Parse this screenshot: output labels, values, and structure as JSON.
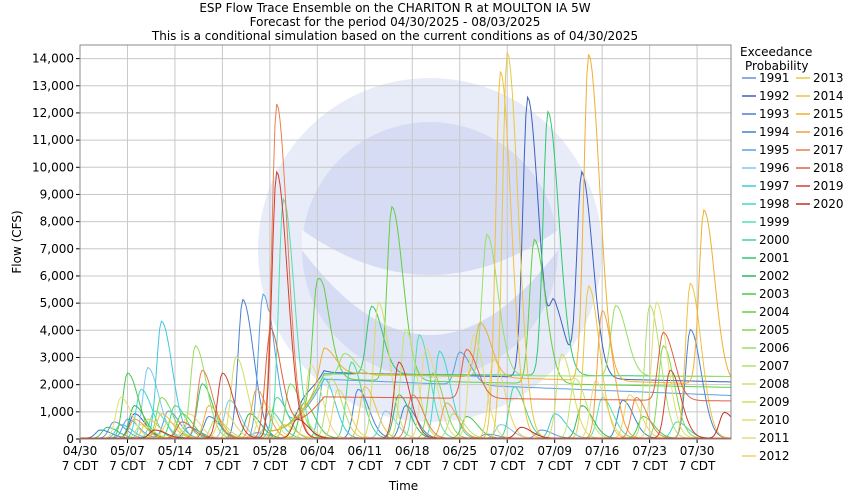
{
  "chart_data": {
    "type": "line",
    "title": "ESP Flow Trace Ensemble on the CHARITON R at MOULTON IA 5W",
    "subtitle_1": "Forecast for the period 04/30/2025 - 08/03/2025",
    "subtitle_2": "This is a conditional simulation based on the current conditions as of 04/30/2025",
    "xlabel": "Time",
    "ylabel": "Flow (CFS)",
    "ylim": [
      0,
      14500
    ],
    "xlim_days": [
      0,
      96
    ],
    "grid": true,
    "y_ticks": [
      "0",
      "1,000",
      "2,000",
      "3,000",
      "4,000",
      "5,000",
      "6,000",
      "7,000",
      "8,000",
      "9,000",
      "10,000",
      "11,000",
      "12,000",
      "13,000",
      "14,000"
    ],
    "x_ticks": [
      {
        "l1": "04/30",
        "l2": "7 CDT"
      },
      {
        "l1": "05/07",
        "l2": "7 CDT"
      },
      {
        "l1": "05/14",
        "l2": "7 CDT"
      },
      {
        "l1": "05/21",
        "l2": "7 CDT"
      },
      {
        "l1": "05/28",
        "l2": "7 CDT"
      },
      {
        "l1": "06/04",
        "l2": "7 CDT"
      },
      {
        "l1": "06/11",
        "l2": "7 CDT"
      },
      {
        "l1": "06/18",
        "l2": "7 CDT"
      },
      {
        "l1": "06/25",
        "l2": "7 CDT"
      },
      {
        "l1": "07/02",
        "l2": "7 CDT"
      },
      {
        "l1": "07/09",
        "l2": "7 CDT"
      },
      {
        "l1": "07/16",
        "l2": "7 CDT"
      },
      {
        "l1": "07/23",
        "l2": "7 CDT"
      },
      {
        "l1": "07/30",
        "l2": "7 CDT"
      }
    ],
    "legend_title_1": "Exceedance",
    "legend_title_2": "Probability",
    "legend_position": "right",
    "series": [
      {
        "name": "1991",
        "color": "#6a8fd8",
        "peaks": [
          [
            5,
            600
          ],
          [
            26,
            200
          ],
          [
            60,
            150
          ],
          [
            68,
            300
          ]
        ]
      },
      {
        "name": "1992",
        "color": "#3f5fc0",
        "peaks": [
          [
            8,
            900
          ],
          [
            33,
            400
          ],
          [
            66,
            10300
          ],
          [
            70,
            2400
          ],
          [
            74,
            7500
          ]
        ]
      },
      {
        "name": "1993",
        "color": "#4a7fd0",
        "peaks": [
          [
            16,
            400
          ],
          [
            24,
            5100
          ],
          [
            41,
            1800
          ],
          [
            90,
            4000
          ]
        ]
      },
      {
        "name": "1994",
        "color": "#3b82c8",
        "peaks": [
          [
            3,
            300
          ],
          [
            19,
            800
          ],
          [
            48,
            1200
          ],
          [
            80,
            1400
          ]
        ]
      },
      {
        "name": "1995",
        "color": "#5aa0e0",
        "peaks": [
          [
            7,
            700
          ],
          [
            13,
            1000
          ],
          [
            27,
            5300
          ],
          [
            56,
            1200
          ]
        ]
      },
      {
        "name": "1996",
        "color": "#7fc6ef",
        "peaks": [
          [
            10,
            2600
          ],
          [
            22,
            1400
          ],
          [
            45,
            1000
          ],
          [
            62,
            500
          ]
        ]
      },
      {
        "name": "1997",
        "color": "#40c8e0",
        "peaks": [
          [
            6,
            500
          ],
          [
            12,
            4300
          ],
          [
            36,
            2200
          ],
          [
            70,
            900
          ]
        ]
      },
      {
        "name": "1998",
        "color": "#3cd8c8",
        "peaks": [
          [
            9,
            1800
          ],
          [
            28,
            1000
          ],
          [
            53,
            3200
          ],
          [
            88,
            600
          ]
        ]
      },
      {
        "name": "1999",
        "color": "#50e0b0",
        "peaks": [
          [
            11,
            1000
          ],
          [
            30,
            8800
          ],
          [
            50,
            3800
          ],
          [
            77,
            1500
          ]
        ]
      },
      {
        "name": "2000",
        "color": "#40d890",
        "peaks": [
          [
            14,
            1200
          ],
          [
            29,
            1500
          ],
          [
            40,
            2800
          ],
          [
            64,
            1900
          ]
        ]
      },
      {
        "name": "2001",
        "color": "#30c870",
        "peaks": [
          [
            4,
            400
          ],
          [
            18,
            2000
          ],
          [
            43,
            2500
          ],
          [
            69,
            9700
          ]
        ]
      },
      {
        "name": "2002",
        "color": "#2ab860",
        "peaks": [
          [
            8,
            1200
          ],
          [
            25,
            900
          ],
          [
            47,
            1600
          ],
          [
            74,
            1200
          ]
        ]
      },
      {
        "name": "2003",
        "color": "#48c848",
        "peaks": [
          [
            7,
            2400
          ],
          [
            33,
            1300
          ],
          [
            57,
            800
          ],
          [
            83,
            800
          ]
        ]
      },
      {
        "name": "2004",
        "color": "#60d040",
        "peaks": [
          [
            15,
            900
          ],
          [
            35,
            4100
          ],
          [
            46,
            6400
          ],
          [
            67,
            5300
          ]
        ]
      },
      {
        "name": "2005",
        "color": "#80d850",
        "peaks": [
          [
            12,
            1500
          ],
          [
            31,
            2000
          ],
          [
            52,
            2400
          ],
          [
            86,
            3400
          ]
        ]
      },
      {
        "name": "2006",
        "color": "#98e060",
        "peaks": [
          [
            17,
            3400
          ],
          [
            39,
            800
          ],
          [
            60,
            5200
          ],
          [
            79,
            2600
          ]
        ]
      },
      {
        "name": "2007",
        "color": "#b0e070",
        "peaks": [
          [
            20,
            700
          ],
          [
            37,
            2200
          ],
          [
            55,
            900
          ],
          [
            84,
            4900
          ]
        ]
      },
      {
        "name": "2008",
        "color": "#c0e868",
        "peaks": [
          [
            9,
            500
          ],
          [
            32,
            1000
          ],
          [
            48,
            4000
          ],
          [
            73,
            2200
          ]
        ]
      },
      {
        "name": "2009",
        "color": "#d0e060",
        "peaks": [
          [
            13,
            600
          ],
          [
            23,
            3000
          ],
          [
            44,
            5000
          ],
          [
            71,
            3100
          ]
        ]
      },
      {
        "name": "2010",
        "color": "#e0e070",
        "peaks": [
          [
            6,
            1500
          ],
          [
            27,
            1300
          ],
          [
            58,
            3800
          ],
          [
            85,
            5000
          ]
        ]
      },
      {
        "name": "2011",
        "color": "#e8d880",
        "peaks": [
          [
            16,
            900
          ],
          [
            34,
            2700
          ],
          [
            51,
            3300
          ],
          [
            76,
            2100
          ]
        ]
      },
      {
        "name": "2012",
        "color": "#f0d060",
        "peaks": [
          [
            21,
            1000
          ],
          [
            38,
            1800
          ],
          [
            61,
            2900
          ],
          [
            81,
            1600
          ]
        ]
      },
      {
        "name": "2013",
        "color": "#e8c840",
        "peaks": [
          [
            10,
            700
          ],
          [
            30,
            500
          ],
          [
            63,
            14200
          ],
          [
            75,
            5600
          ]
        ]
      },
      {
        "name": "2014",
        "color": "#f0c040",
        "peaks": [
          [
            12,
            900
          ],
          [
            42,
            1900
          ],
          [
            62,
            13500
          ],
          [
            90,
            5700
          ]
        ]
      },
      {
        "name": "2015",
        "color": "#f0b030",
        "peaks": [
          [
            19,
            1200
          ],
          [
            36,
            900
          ],
          [
            59,
            2000
          ],
          [
            75,
            12000
          ],
          [
            92,
            6400
          ]
        ]
      },
      {
        "name": "2016",
        "color": "#f0a040",
        "peaks": [
          [
            8,
            700
          ],
          [
            26,
            1800
          ],
          [
            54,
            1300
          ],
          [
            77,
            4700
          ]
        ]
      },
      {
        "name": "2017",
        "color": "#e88050",
        "peaks": [
          [
            18,
            2500
          ],
          [
            29,
            12300
          ],
          [
            49,
            1600
          ],
          [
            82,
            1500
          ]
        ]
      },
      {
        "name": "2018",
        "color": "#e06040",
        "peaks": [
          [
            15,
            600
          ],
          [
            28,
            3800
          ],
          [
            57,
            1800
          ],
          [
            86,
            2500
          ]
        ]
      },
      {
        "name": "2019",
        "color": "#d04030",
        "peaks": [
          [
            21,
            2400
          ],
          [
            29,
            9800
          ],
          [
            47,
            2800
          ],
          [
            87,
            2500
          ]
        ]
      },
      {
        "name": "2020",
        "color": "#c03020",
        "peaks": [
          [
            11,
            300
          ],
          [
            32,
            700
          ],
          [
            65,
            400
          ],
          [
            95,
            950
          ]
        ]
      }
    ],
    "base_curves": [
      {
        "name": "1992",
        "plateau": 2450,
        "end": 2100
      },
      {
        "name": "2001",
        "plateau": 2400,
        "end": 2300
      },
      {
        "name": "2006",
        "plateau": 2350,
        "end": 2300
      },
      {
        "name": "2015",
        "plateau": 2450,
        "end": 2000
      },
      {
        "name": "2018",
        "plateau": 1550,
        "end": 1400
      },
      {
        "name": "2004",
        "plateau": 2200,
        "end": 1900
      },
      {
        "name": "1995",
        "plateau": 2200,
        "end": 1600
      }
    ]
  }
}
